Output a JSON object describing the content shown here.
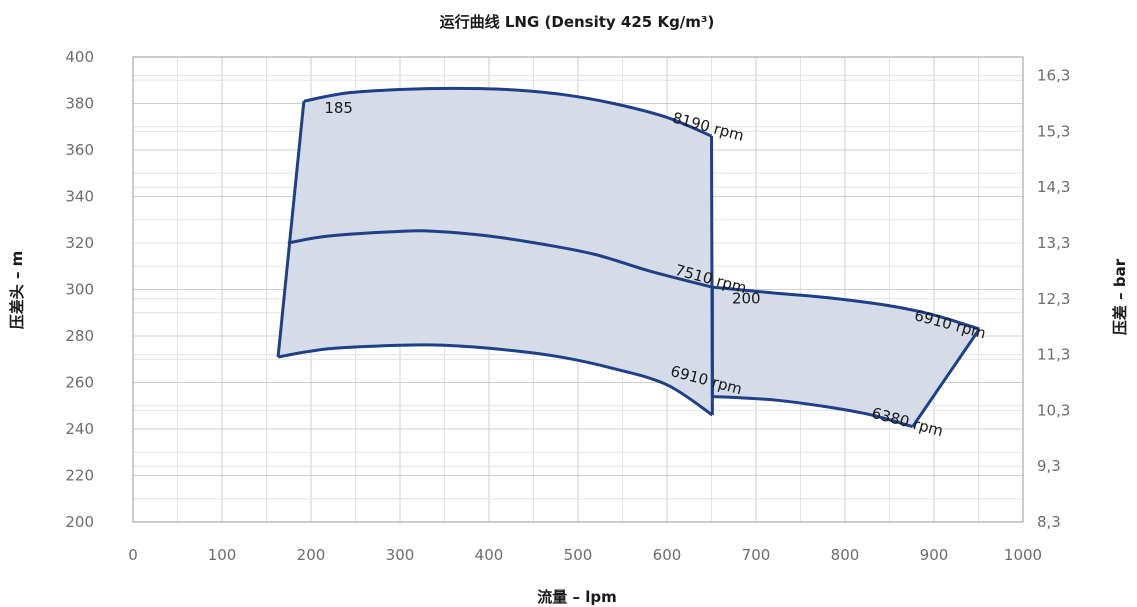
{
  "chart_data": {
    "type": "area",
    "title": "运行曲线 LNG (Density 425 Kg/m³)",
    "xlabel": "流量 – lpm",
    "ylabel": "压差头 – m",
    "y2label": "压差 – bar",
    "xlim": [
      0,
      1000
    ],
    "ylim": [
      200,
      400
    ],
    "x_ticks": [
      "0",
      "100",
      "200",
      "300",
      "400",
      "500",
      "600",
      "700",
      "800",
      "900",
      "1000"
    ],
    "y_ticks": [
      "200",
      "220",
      "240",
      "260",
      "280",
      "300",
      "320",
      "340",
      "360",
      "380",
      "400"
    ],
    "y2_ticks": [
      {
        "label": "8,3",
        "y": 200
      },
      {
        "label": "9,3",
        "y": 224
      },
      {
        "label": "10,3",
        "y": 248
      },
      {
        "label": "11,3",
        "y": 272
      },
      {
        "label": "12,3",
        "y": 296
      },
      {
        "label": "13,3",
        "y": 320
      },
      {
        "label": "14,3",
        "y": 344
      },
      {
        "label": "15,3",
        "y": 368
      },
      {
        "label": "16,3",
        "y": 392
      }
    ],
    "grid": true,
    "fill_color": "#d5dbe7",
    "line_color": "#1f3f86",
    "regions": [
      {
        "name": "185",
        "curves": [
          {
            "name": "8190 rpm",
            "points": [
              [
                192,
                381
              ],
              [
                240,
                384.5
              ],
              [
                300,
                386
              ],
              [
                360,
                386.5
              ],
              [
                420,
                386
              ],
              [
                480,
                384
              ],
              [
                540,
                380
              ],
              [
                600,
                374
              ],
              [
                650,
                366
              ]
            ]
          },
          {
            "name": "7510 rpm",
            "points": [
              [
                174,
                320
              ],
              [
                220,
                323
              ],
              [
                300,
                325
              ],
              [
                340,
                325
              ],
              [
                400,
                323
              ],
              [
                460,
                319.5
              ],
              [
                520,
                315
              ],
              [
                580,
                308
              ],
              [
                651,
                301
              ]
            ]
          },
          {
            "name": "6910 rpm",
            "points": [
              [
                163,
                271
              ],
              [
                220,
                274.5
              ],
              [
                300,
                276
              ],
              [
                350,
                276
              ],
              [
                420,
                274
              ],
              [
                480,
                271
              ],
              [
                540,
                266
              ],
              [
                600,
                259
              ],
              [
                651,
                246
              ]
            ]
          }
        ]
      },
      {
        "name": "200",
        "curves": [
          {
            "name": "6910 rpm",
            "points": [
              [
                651,
                301
              ],
              [
                720,
                298.5
              ],
              [
                780,
                296.5
              ],
              [
                850,
                293
              ],
              [
                900,
                289
              ],
              [
                951,
                283
              ]
            ]
          },
          {
            "name": "6380 rpm",
            "points": [
              [
                651,
                254
              ],
              [
                720,
                252.5
              ],
              [
                780,
                249.5
              ],
              [
                830,
                246
              ],
              [
                876,
                241
              ]
            ]
          }
        ]
      }
    ],
    "labels": [
      {
        "text": "185",
        "x": 215,
        "y": 376,
        "angle": 0
      },
      {
        "text": "8190 rpm",
        "x": 605,
        "y": 372,
        "angle": 15
      },
      {
        "text": "7510 rpm",
        "x": 608,
        "y": 306.5,
        "angle": 15
      },
      {
        "text": "6910 rpm",
        "x": 603,
        "y": 263,
        "angle": 15
      },
      {
        "text": "200",
        "x": 673,
        "y": 294,
        "angle": 0
      },
      {
        "text": "6910 rpm",
        "x": 877,
        "y": 287,
        "angle": 15
      },
      {
        "text": "6380 rpm",
        "x": 829,
        "y": 245,
        "angle": 15
      }
    ]
  }
}
